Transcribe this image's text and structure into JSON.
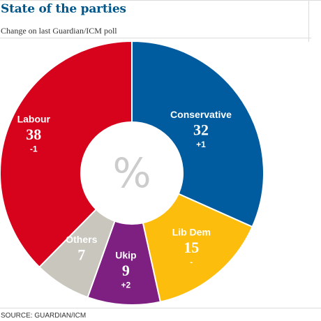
{
  "header": {
    "title": "State of the parties",
    "subtitle": "Change on last Guardian/ICM poll"
  },
  "footer": {
    "source": "SOURCE: GUARDIAN/ICM"
  },
  "chart_data": {
    "type": "pie",
    "donut": true,
    "center_label": "%",
    "start_category": "Conservative",
    "direction": "clockwise",
    "slices": [
      {
        "name": "Conservative",
        "value": 32,
        "value_label": "32",
        "change": "+1",
        "color": "#005c9f"
      },
      {
        "name": "Lib Dem",
        "value": 15,
        "value_label": "15",
        "change": "-",
        "color": "#fcbd0c"
      },
      {
        "name": "Ukip",
        "value": 9,
        "value_label": "9",
        "change": "+2",
        "color": "#7e1f82"
      },
      {
        "name": "Others",
        "value": 7,
        "value_label": "7",
        "change": "",
        "color": "#c8c6bd"
      },
      {
        "name": "Labour",
        "value": 38,
        "value_label": "38",
        "change": "-1",
        "color": "#d7021c"
      }
    ],
    "colors": {
      "label_text": "#ffffff",
      "center_fill": "#ffffff",
      "center_text": "#cccccc",
      "separator": "#ffffff"
    }
  }
}
